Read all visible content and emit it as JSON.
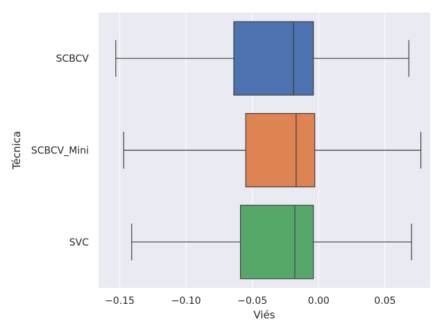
{
  "chart_data": {
    "type": "boxplot",
    "orientation": "horizontal",
    "xlabel": "Viés",
    "ylabel": "Técnica",
    "xlim": [
      -0.166,
      0.084
    ],
    "grid": true,
    "xticks": [
      -0.15,
      -0.1,
      -0.05,
      0.0,
      0.05
    ],
    "xtick_labels": [
      "−0.15",
      "−0.10",
      "−0.05",
      "0.00",
      "0.05"
    ],
    "colors": {
      "background": "#eaeaf2",
      "grid": "#ffffff",
      "line": "#3f3f3f",
      "text": "#262626"
    },
    "categories": [
      "SCBCV",
      "SCBCV_Mini",
      "SVC"
    ],
    "boxes": [
      {
        "label": "SCBCV",
        "color": "#4c72b0",
        "whisker_low": -0.153,
        "q1": -0.064,
        "median": -0.019,
        "q3": -0.004,
        "whisker_high": 0.068
      },
      {
        "label": "SCBCV_Mini",
        "color": "#dd8452",
        "whisker_low": -0.147,
        "q1": -0.055,
        "median": -0.017,
        "q3": -0.003,
        "whisker_high": 0.077
      },
      {
        "label": "SVC",
        "color": "#55a868",
        "whisker_low": -0.141,
        "q1": -0.059,
        "median": -0.018,
        "q3": -0.004,
        "whisker_high": 0.07
      }
    ]
  }
}
